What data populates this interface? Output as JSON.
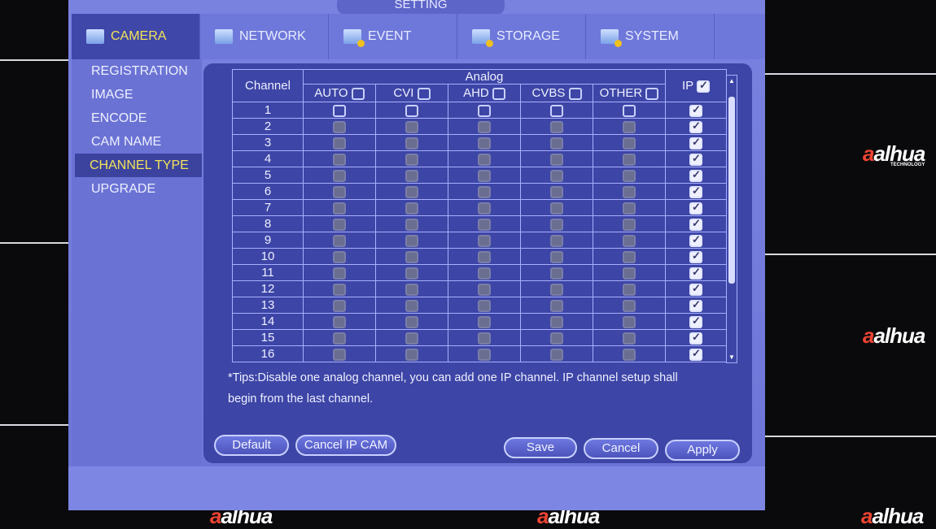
{
  "title": "SETTING",
  "tabs": [
    {
      "label": "CAMERA",
      "active": true
    },
    {
      "label": "NETWORK"
    },
    {
      "label": "EVENT"
    },
    {
      "label": "STORAGE"
    },
    {
      "label": "SYSTEM"
    }
  ],
  "sidebar": [
    {
      "label": "REGISTRATION"
    },
    {
      "label": "IMAGE"
    },
    {
      "label": "ENCODE"
    },
    {
      "label": "CAM NAME"
    },
    {
      "label": "CHANNEL TYPE",
      "active": true
    },
    {
      "label": "UPGRADE"
    }
  ],
  "table": {
    "channel_header": "Channel",
    "analog_header": "Analog",
    "ip_header": "IP",
    "ip_all_checked": true,
    "analog_columns": [
      "AUTO",
      "CVI",
      "AHD",
      "CVBS",
      "OTHER"
    ],
    "rows": [
      {
        "ch": "1",
        "analog_enabled": true,
        "ip": true
      },
      {
        "ch": "2",
        "analog_enabled": false,
        "ip": true
      },
      {
        "ch": "3",
        "analog_enabled": false,
        "ip": true
      },
      {
        "ch": "4",
        "analog_enabled": false,
        "ip": true
      },
      {
        "ch": "5",
        "analog_enabled": false,
        "ip": true
      },
      {
        "ch": "6",
        "analog_enabled": false,
        "ip": true
      },
      {
        "ch": "7",
        "analog_enabled": false,
        "ip": true
      },
      {
        "ch": "8",
        "analog_enabled": false,
        "ip": true
      },
      {
        "ch": "9",
        "analog_enabled": false,
        "ip": true
      },
      {
        "ch": "10",
        "analog_enabled": false,
        "ip": true
      },
      {
        "ch": "11",
        "analog_enabled": false,
        "ip": true
      },
      {
        "ch": "12",
        "analog_enabled": false,
        "ip": true
      },
      {
        "ch": "13",
        "analog_enabled": false,
        "ip": true
      },
      {
        "ch": "14",
        "analog_enabled": false,
        "ip": true
      },
      {
        "ch": "15",
        "analog_enabled": false,
        "ip": true
      },
      {
        "ch": "16",
        "analog_enabled": false,
        "ip": true
      }
    ]
  },
  "tips": "*Tips:Disable one analog channel, you can add one IP channel. IP channel setup shall begin from the last channel.",
  "buttons": {
    "default": "Default",
    "cancel_ip_cam": "Cancel IP CAM",
    "save": "Save",
    "cancel": "Cancel",
    "apply": "Apply"
  },
  "brand": {
    "logo": "alhua",
    "sub": "TECHNOLOGY"
  },
  "colors": {
    "active_text": "#f2e35a",
    "panel": "#3d45a6"
  }
}
